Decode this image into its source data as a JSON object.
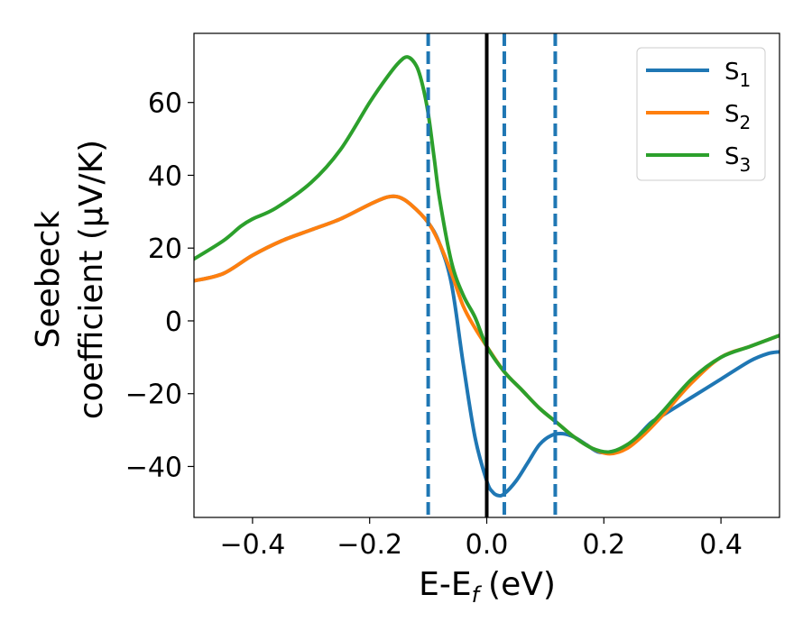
{
  "chart_data": {
    "type": "line",
    "xlabel": "E-E",
    "xlabel_sub": "f",
    "xlabel_unit": "(eV)",
    "ylabel_line1": "Seebeck",
    "ylabel_line2": "coefficient  (μV/K)",
    "xlim": [
      -0.5,
      0.5
    ],
    "ylim": [
      -54,
      79
    ],
    "xticks": [
      -0.4,
      -0.2,
      0.0,
      0.2,
      0.4
    ],
    "xtick_labels": [
      "−0.4",
      "−0.2",
      "0.0",
      "0.2",
      "0.4"
    ],
    "yticks": [
      60,
      40,
      20,
      0,
      -20,
      -40
    ],
    "ytick_labels": [
      "60",
      "40",
      "20",
      "0",
      "−20",
      "−40"
    ],
    "grid": false,
    "legend_position": "top-right",
    "vertical_lines": [
      {
        "x": 0.0,
        "style": "solid",
        "color": "#000000"
      },
      {
        "x": -0.1,
        "style": "dashed",
        "color": "#1f77b4"
      },
      {
        "x": 0.03,
        "style": "dashed",
        "color": "#1f77b4"
      },
      {
        "x": 0.117,
        "style": "dashed",
        "color": "#1f77b4"
      }
    ],
    "series": [
      {
        "name": "S",
        "sub": "1",
        "color": "#1f77b4",
        "x": [
          -0.5,
          -0.45,
          -0.4,
          -0.35,
          -0.3,
          -0.25,
          -0.2,
          -0.17,
          -0.15,
          -0.13,
          -0.1,
          -0.08,
          -0.06,
          -0.04,
          -0.02,
          0.0,
          0.01,
          0.02,
          0.03,
          0.05,
          0.07,
          0.09,
          0.11,
          0.13,
          0.15,
          0.17,
          0.19,
          0.21,
          0.23,
          0.25,
          0.28,
          0.3,
          0.35,
          0.4,
          0.45,
          0.48,
          0.5
        ],
        "y": [
          11,
          13,
          18,
          22,
          25,
          28,
          32,
          34,
          34,
          32,
          27,
          21,
          10,
          -12,
          -32,
          -44,
          -47,
          -48,
          -47.5,
          -44,
          -39,
          -34,
          -31.5,
          -31,
          -32,
          -34,
          -36,
          -36,
          -35,
          -33,
          -28,
          -26,
          -21,
          -16,
          -11,
          -9,
          -8.5
        ]
      },
      {
        "name": "S",
        "sub": "2",
        "color": "#ff7f0e",
        "x": [
          -0.5,
          -0.45,
          -0.4,
          -0.35,
          -0.3,
          -0.25,
          -0.2,
          -0.17,
          -0.15,
          -0.13,
          -0.1,
          -0.08,
          -0.06,
          -0.04,
          -0.02,
          0.0,
          0.03,
          0.06,
          0.09,
          0.12,
          0.15,
          0.18,
          0.21,
          0.24,
          0.27,
          0.3,
          0.35,
          0.4,
          0.45,
          0.5
        ],
        "y": [
          11,
          13,
          18,
          22,
          25,
          28,
          32,
          34,
          34,
          32,
          27,
          21,
          13,
          4,
          -2,
          -7,
          -14,
          -19,
          -24,
          -28,
          -32,
          -35,
          -36.5,
          -35,
          -31,
          -26,
          -17,
          -10,
          -7,
          -4
        ]
      },
      {
        "name": "S",
        "sub": "3",
        "color": "#2ca02c",
        "x": [
          -0.5,
          -0.45,
          -0.42,
          -0.4,
          -0.36,
          -0.3,
          -0.25,
          -0.2,
          -0.17,
          -0.15,
          -0.135,
          -0.12,
          -0.11,
          -0.1,
          -0.09,
          -0.08,
          -0.06,
          -0.04,
          -0.02,
          0.0,
          0.03,
          0.06,
          0.09,
          0.12,
          0.15,
          0.18,
          0.21,
          0.24,
          0.27,
          0.3,
          0.35,
          0.4,
          0.45,
          0.5
        ],
        "y": [
          17,
          22,
          26,
          28,
          31,
          38,
          47,
          60,
          67,
          71,
          72.5,
          70,
          65,
          57,
          45,
          33,
          16,
          7,
          1,
          -7,
          -14,
          -19,
          -24,
          -28,
          -32,
          -35,
          -36,
          -34,
          -30,
          -25,
          -16,
          -10,
          -7,
          -4
        ]
      }
    ]
  }
}
